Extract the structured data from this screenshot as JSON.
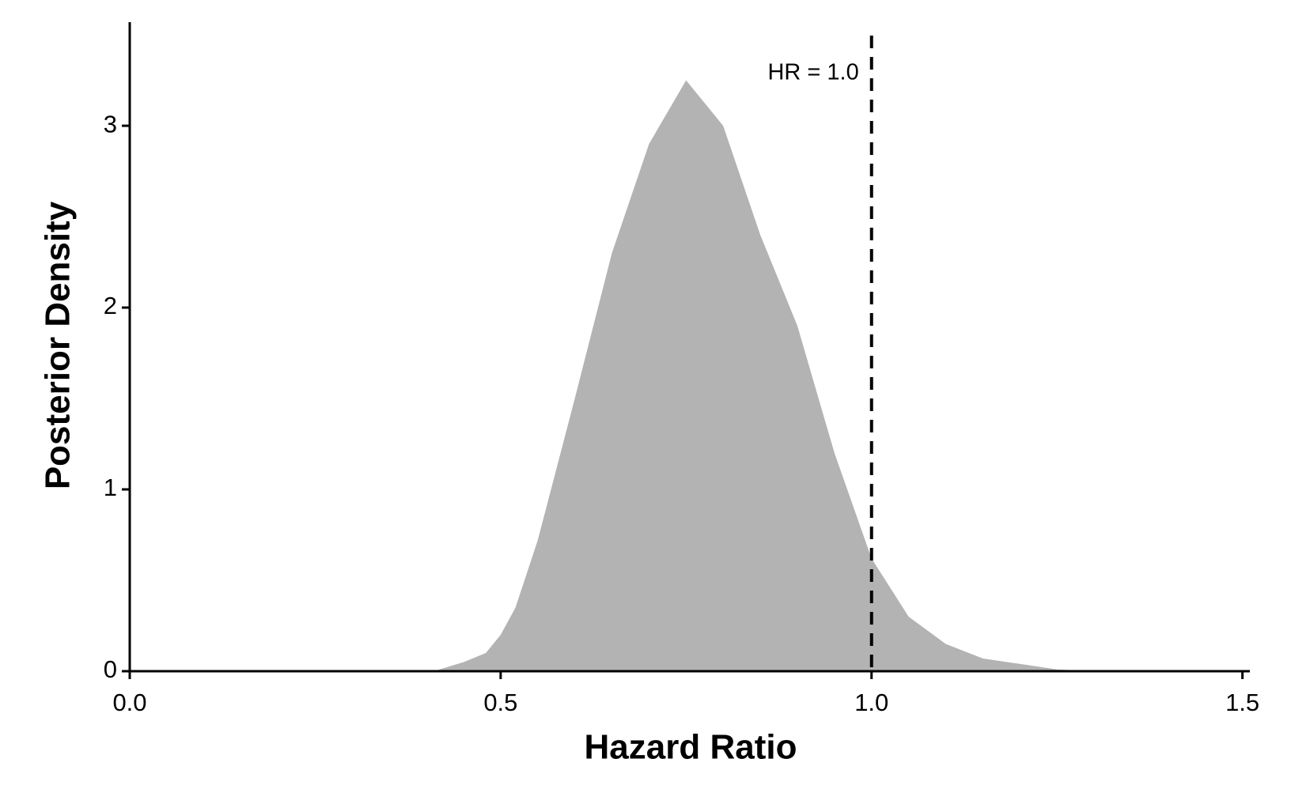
{
  "chart_data": {
    "type": "area",
    "x_label": "Hazard Ratio",
    "y_label": "Posterior Density",
    "x": [
      0.41,
      0.45,
      0.48,
      0.5,
      0.52,
      0.55,
      0.6,
      0.65,
      0.7,
      0.75,
      0.8,
      0.85,
      0.9,
      0.95,
      1.0,
      1.05,
      1.1,
      1.15,
      1.2,
      1.25,
      1.3
    ],
    "values": [
      0,
      0.05,
      0.1,
      0.2,
      0.35,
      0.72,
      1.5,
      2.3,
      2.9,
      3.25,
      3.0,
      2.4,
      1.9,
      1.2,
      0.62,
      0.3,
      0.15,
      0.07,
      0.04,
      0.01,
      0
    ],
    "color": "#b3b3b3",
    "xlim": [
      0,
      1.51
    ],
    "ylim": [
      0,
      3.57
    ],
    "xticks": [
      {
        "value": 0,
        "label": "0.0"
      },
      {
        "value": 0.5,
        "label": "0.5"
      },
      {
        "value": 1,
        "label": "1.0"
      },
      {
        "value": 1.5,
        "label": "1.5"
      }
    ],
    "yticks": [
      0,
      1,
      2,
      3
    ],
    "reference_line": {
      "x": 1,
      "label": "HR = 1.0"
    }
  }
}
